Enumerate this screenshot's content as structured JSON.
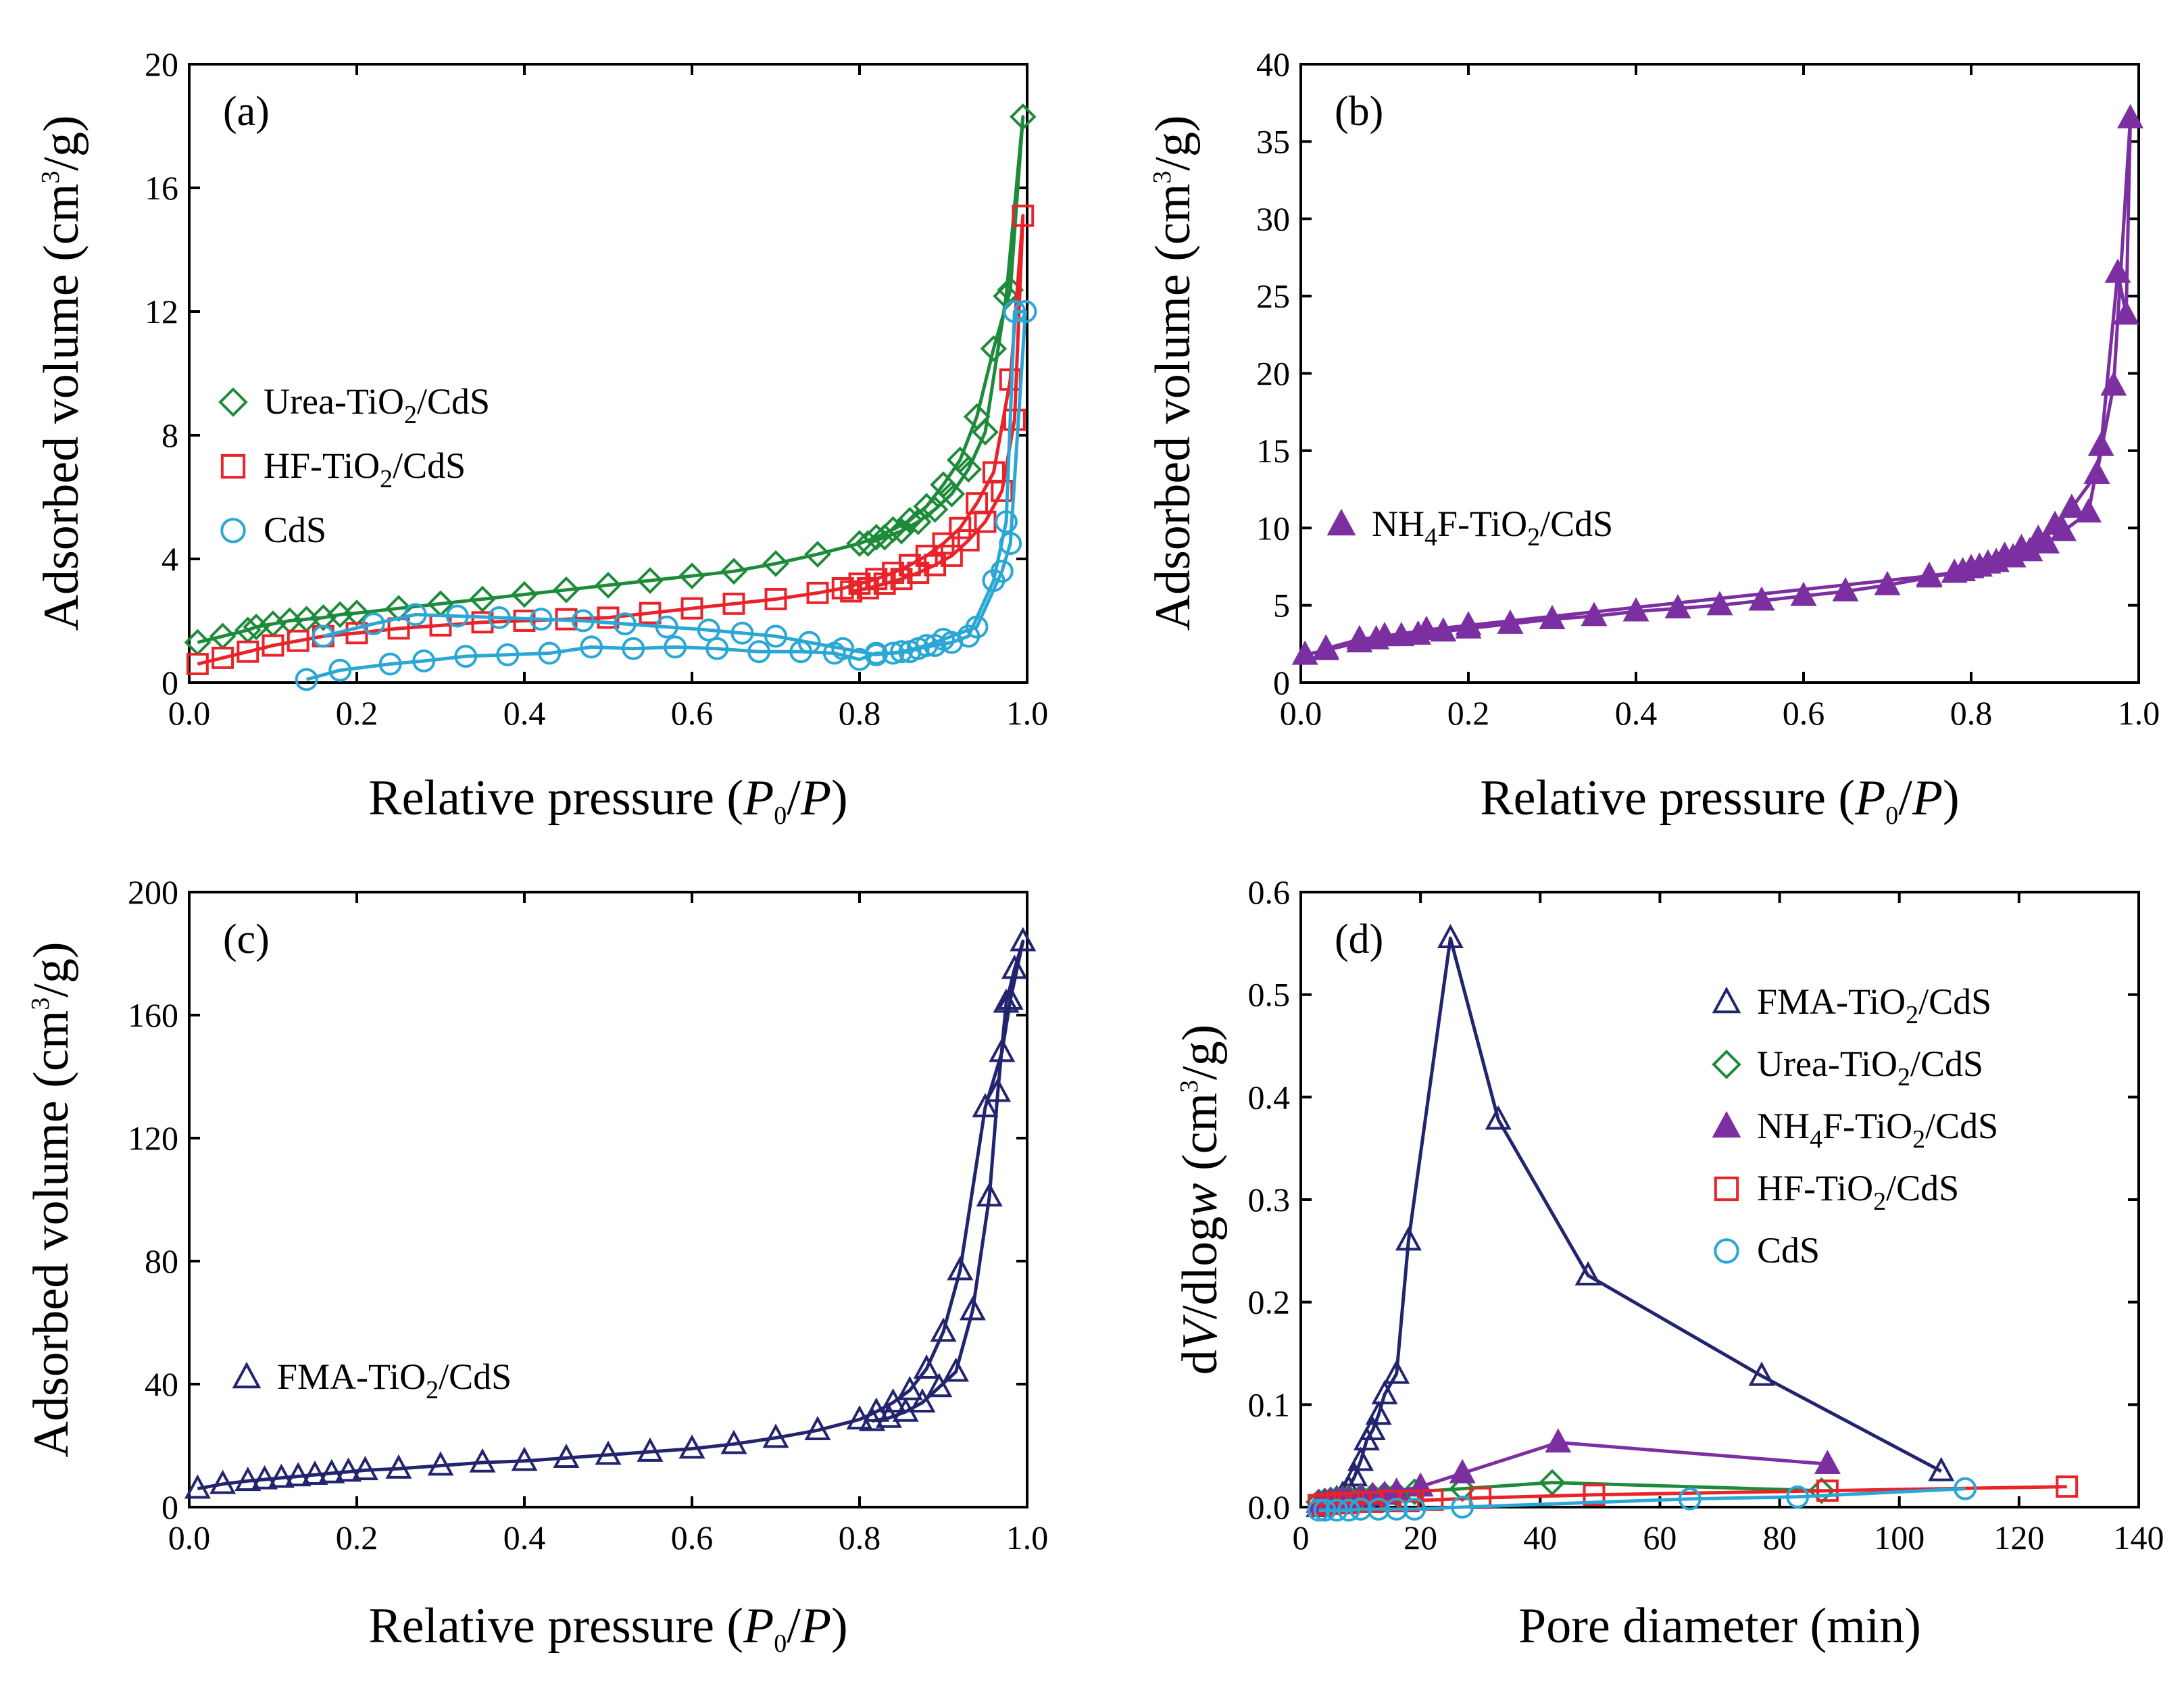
{
  "chart_data": [
    {
      "type": "line",
      "panel_label": "(a)",
      "xlabel": "Relative pressure (P0/P)",
      "ylabel": "Adsorbed volume (cm3/g)",
      "xlim": [
        0,
        1.0
      ],
      "ylim": [
        0,
        20
      ],
      "xticks": [
        "0.0",
        "0.2",
        "0.4",
        "0.6",
        "0.8",
        "1.0"
      ],
      "yticks": [
        "0",
        "4",
        "8",
        "12",
        "16",
        "20"
      ],
      "legend_position": "middle-left",
      "series": [
        {
          "name": "Urea-TiO2/CdS",
          "marker": "diamond-open",
          "color": "#1e8b3a",
          "x": [
            0.01,
            0.04,
            0.07,
            0.08,
            0.1,
            0.12,
            0.14,
            0.16,
            0.18,
            0.2,
            0.25,
            0.3,
            0.35,
            0.4,
            0.45,
            0.5,
            0.55,
            0.6,
            0.65,
            0.7,
            0.75,
            0.8,
            0.82,
            0.84,
            0.86,
            0.88,
            0.9,
            0.92,
            0.94,
            0.96,
            0.98,
            0.995,
            0.975,
            0.95,
            0.93,
            0.91,
            0.89,
            0.87,
            0.85,
            0.83,
            0.81
          ],
          "y": [
            1.3,
            1.5,
            1.7,
            1.8,
            1.9,
            2.0,
            2.05,
            2.1,
            2.2,
            2.25,
            2.4,
            2.55,
            2.7,
            2.85,
            3.0,
            3.15,
            3.3,
            3.45,
            3.6,
            3.85,
            4.15,
            4.5,
            4.7,
            4.95,
            5.25,
            5.7,
            6.4,
            7.2,
            8.6,
            10.8,
            12.7,
            18.3,
            12.5,
            8.1,
            6.9,
            6.1,
            5.6,
            5.2,
            4.9,
            4.7,
            4.5
          ]
        },
        {
          "name": "HF-TiO2/CdS",
          "marker": "square-open",
          "color": "#e8232a",
          "x": [
            0.01,
            0.04,
            0.07,
            0.1,
            0.13,
            0.16,
            0.2,
            0.25,
            0.3,
            0.35,
            0.4,
            0.45,
            0.5,
            0.55,
            0.6,
            0.65,
            0.7,
            0.75,
            0.78,
            0.8,
            0.82,
            0.84,
            0.86,
            0.88,
            0.9,
            0.92,
            0.94,
            0.96,
            0.98,
            0.995,
            0.985,
            0.97,
            0.95,
            0.93,
            0.91,
            0.89,
            0.87,
            0.85,
            0.83,
            0.81,
            0.79
          ],
          "y": [
            0.6,
            0.8,
            1.0,
            1.2,
            1.35,
            1.5,
            1.6,
            1.75,
            1.85,
            1.95,
            2.0,
            2.05,
            2.1,
            2.25,
            2.4,
            2.55,
            2.7,
            2.9,
            3.05,
            3.2,
            3.35,
            3.55,
            3.8,
            4.1,
            4.5,
            5.0,
            5.8,
            6.8,
            9.8,
            15.1,
            8.5,
            6.2,
            5.2,
            4.6,
            4.1,
            3.8,
            3.55,
            3.35,
            3.2,
            3.05,
            2.95
          ]
        },
        {
          "name": "CdS",
          "marker": "circle-open",
          "color": "#2aa7d4",
          "x": [
            0.14,
            0.18,
            0.24,
            0.28,
            0.33,
            0.38,
            0.43,
            0.48,
            0.53,
            0.58,
            0.63,
            0.68,
            0.73,
            0.77,
            0.8,
            0.82,
            0.84,
            0.86,
            0.87,
            0.89,
            0.91,
            0.93,
            0.96,
            0.975,
            0.985,
            0.998,
            0.98,
            0.97,
            0.94,
            0.9,
            0.88,
            0.85,
            0.82,
            0.78,
            0.74,
            0.7,
            0.66,
            0.62,
            0.57,
            0.52,
            0.47,
            0.42,
            0.37,
            0.32,
            0.27,
            0.22,
            0.16
          ],
          "y": [
            0.1,
            0.4,
            0.6,
            0.7,
            0.85,
            0.9,
            0.95,
            1.15,
            1.1,
            1.15,
            1.1,
            1.0,
            1.0,
            0.95,
            0.75,
            0.95,
            0.95,
            1.0,
            1.1,
            1.2,
            1.3,
            1.5,
            3.3,
            5.2,
            12.0,
            12.0,
            4.5,
            3.6,
            1.8,
            1.4,
            1.2,
            1.0,
            0.9,
            1.1,
            1.3,
            1.5,
            1.6,
            1.7,
            1.8,
            1.9,
            2.0,
            2.05,
            2.1,
            2.15,
            2.2,
            1.9,
            1.5
          ]
        }
      ]
    },
    {
      "type": "line",
      "panel_label": "(b)",
      "xlabel": "Relative pressure (P0/P)",
      "ylabel": "Adsorbed volume (cm3/g)",
      "xlim": [
        0,
        1.0
      ],
      "ylim": [
        0,
        40
      ],
      "xticks": [
        "0.0",
        "0.2",
        "0.4",
        "0.6",
        "0.8",
        "1.0"
      ],
      "yticks": [
        "0",
        "5",
        "10",
        "15",
        "20",
        "25",
        "30",
        "35",
        "40"
      ],
      "legend_position": "middle-left",
      "series": [
        {
          "name": "NH4F-TiO2/CdS",
          "marker": "triangle-filled",
          "color": "#7b2fa0",
          "x": [
            0.005,
            0.03,
            0.07,
            0.09,
            0.12,
            0.14,
            0.17,
            0.2,
            0.25,
            0.3,
            0.35,
            0.4,
            0.45,
            0.5,
            0.55,
            0.6,
            0.65,
            0.7,
            0.75,
            0.78,
            0.8,
            0.82,
            0.84,
            0.86,
            0.88,
            0.9,
            0.92,
            0.95,
            0.97,
            0.99,
            0.985,
            0.975,
            0.955,
            0.94,
            0.91,
            0.89,
            0.87,
            0.85,
            0.83,
            0.81,
            0.79,
            0.75,
            0.2,
            0.15,
            0.1,
            0.07,
            0.03
          ],
          "y": [
            1.8,
            2.1,
            2.6,
            2.8,
            3.0,
            3.1,
            3.3,
            3.5,
            3.8,
            4.1,
            4.3,
            4.6,
            4.8,
            5.0,
            5.3,
            5.6,
            5.9,
            6.3,
            6.8,
            7.1,
            7.4,
            7.7,
            8.2,
            8.7,
            9.3,
            10.2,
            11.3,
            13.5,
            19.2,
            36.5,
            23.8,
            26.5,
            15.3,
            11.0,
            9.8,
            9.0,
            8.5,
            8.1,
            7.8,
            7.5,
            7.2,
            6.9,
            3.7,
            3.4,
            3.0,
            2.8,
            2.2
          ]
        }
      ]
    },
    {
      "type": "line",
      "panel_label": "(c)",
      "xlabel": "Relative pressure (P0/P)",
      "ylabel": "Adsorbed volume (cm3/g)",
      "xlim": [
        0,
        1.0
      ],
      "ylim": [
        0,
        200
      ],
      "xticks": [
        "0.0",
        "0.2",
        "0.4",
        "0.6",
        "0.8",
        "1.0"
      ],
      "yticks": [
        "0",
        "40",
        "80",
        "120",
        "160",
        "200"
      ],
      "legend_position": "lower-left",
      "series": [
        {
          "name": "FMA-TiO2/CdS",
          "marker": "triangle-open",
          "color": "#22256e",
          "x": [
            0.01,
            0.04,
            0.07,
            0.09,
            0.11,
            0.13,
            0.15,
            0.17,
            0.19,
            0.21,
            0.25,
            0.3,
            0.35,
            0.4,
            0.45,
            0.5,
            0.55,
            0.6,
            0.65,
            0.7,
            0.75,
            0.8,
            0.82,
            0.84,
            0.86,
            0.88,
            0.9,
            0.92,
            0.95,
            0.97,
            0.98,
            0.995,
            0.985,
            0.975,
            0.965,
            0.955,
            0.935,
            0.915,
            0.895,
            0.875,
            0.855,
            0.835,
            0.815
          ],
          "y": [
            6,
            7.5,
            8.5,
            9,
            9.5,
            10,
            10.5,
            11,
            11.5,
            12,
            12.5,
            13.5,
            14.5,
            15,
            16,
            17,
            18,
            19,
            20.5,
            22.5,
            25,
            28.5,
            31,
            34,
            38,
            45,
            57,
            77,
            130,
            148,
            165,
            184,
            175,
            164,
            135,
            101,
            64,
            44,
            39,
            34,
            31,
            29,
            28
          ]
        }
      ]
    },
    {
      "type": "line",
      "panel_label": "(d)",
      "xlabel": "Pore diameter (min)",
      "ylabel": "dV/dlogw (cm3/g)",
      "xlim": [
        0,
        140
      ],
      "ylim": [
        0,
        0.6
      ],
      "xticks": [
        "0",
        "20",
        "40",
        "60",
        "80",
        "100",
        "120",
        "140"
      ],
      "yticks": [
        "0.0",
        "0.1",
        "0.2",
        "0.3",
        "0.4",
        "0.5",
        "0.6"
      ],
      "legend_position": "top-right",
      "series": [
        {
          "name": "FMA-TiO2/CdS",
          "marker": "triangle-open",
          "color": "#22256e",
          "x": [
            3,
            4,
            5,
            6,
            7,
            8,
            9,
            10,
            11,
            12,
            13,
            14,
            16,
            18,
            25,
            33,
            48,
            77,
            107
          ],
          "y": [
            0.0,
            0.003,
            0.005,
            0.008,
            0.012,
            0.018,
            0.03,
            0.045,
            0.065,
            0.075,
            0.09,
            0.11,
            0.13,
            0.26,
            0.555,
            0.378,
            0.226,
            0.128,
            0.035
          ]
        },
        {
          "name": "Urea-TiO2/CdS",
          "marker": "diamond-open",
          "color": "#1e8b3a",
          "x": [
            3,
            4,
            5,
            6,
            7,
            8,
            10,
            12,
            14,
            16,
            19,
            27,
            42,
            87
          ],
          "y": [
            0.005,
            0.006,
            0.007,
            0.008,
            0.008,
            0.009,
            0.01,
            0.011,
            0.012,
            0.013,
            0.015,
            0.018,
            0.024,
            0.016
          ]
        },
        {
          "name": "NH4F-TiO2/CdS",
          "marker": "triangle-filled",
          "color": "#7b2fa0",
          "x": [
            3,
            4,
            5,
            6,
            7,
            8,
            10,
            12,
            14,
            16,
            20,
            27,
            43,
            88
          ],
          "y": [
            0.004,
            0.005,
            0.006,
            0.007,
            0.007,
            0.008,
            0.01,
            0.011,
            0.012,
            0.015,
            0.02,
            0.033,
            0.063,
            0.042
          ]
        },
        {
          "name": "HF-TiO2/CdS",
          "marker": "square-open",
          "color": "#e8232a",
          "x": [
            3,
            4,
            5,
            6,
            8,
            10,
            12,
            15,
            18,
            22,
            30,
            49,
            88,
            128
          ],
          "y": [
            0.002,
            0.003,
            0.003,
            0.004,
            0.004,
            0.005,
            0.005,
            0.006,
            0.006,
            0.007,
            0.009,
            0.012,
            0.016,
            0.02
          ]
        },
        {
          "name": "CdS",
          "marker": "circle-open",
          "color": "#2aa7d4",
          "x": [
            3,
            4,
            6,
            8,
            10,
            13,
            16,
            19,
            27,
            65,
            83,
            111
          ],
          "y": [
            -0.003,
            -0.003,
            -0.003,
            -0.003,
            -0.002,
            -0.002,
            -0.002,
            -0.002,
            0.0,
            0.008,
            0.01,
            0.018
          ]
        }
      ]
    }
  ]
}
